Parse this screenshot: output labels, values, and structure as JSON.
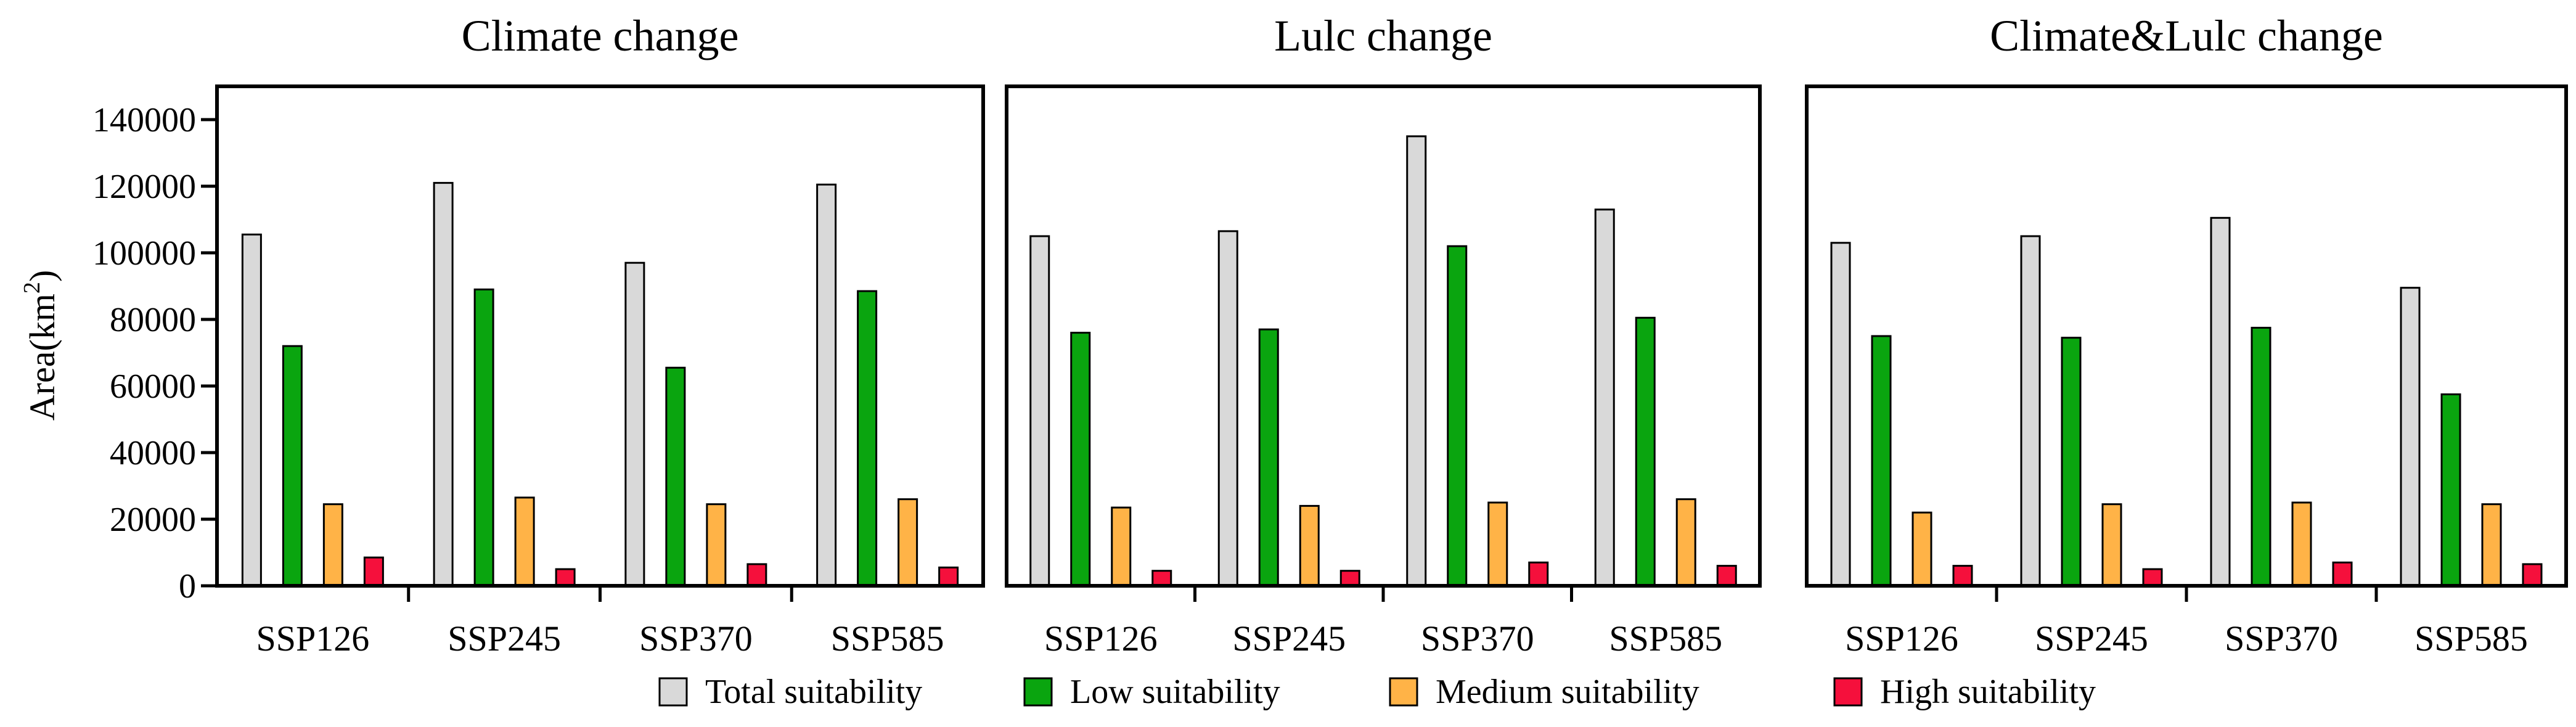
{
  "chart_data": {
    "type": "bar",
    "ylabel": "Area(km",
    "ylabel_sup": "2",
    "ylabel_close": ")",
    "ylim": [
      0,
      150000
    ],
    "yticks": [
      0,
      20000,
      40000,
      60000,
      80000,
      100000,
      120000,
      140000
    ],
    "ytick_labels": [
      "0",
      "20000",
      "40000",
      "60000",
      "80000",
      "100000",
      "120000",
      "140000"
    ],
    "legend": [
      "Total suitability",
      "Low suitability",
      "Medium suitability",
      "High suitability"
    ],
    "colors": [
      "#d9d9d9",
      "#0aa50f",
      "#ffb347",
      "#f5103c"
    ],
    "legend_position": "bottom",
    "panels": [
      {
        "title": "Climate change",
        "categories": [
          "SSP126",
          "SSP245",
          "SSP370",
          "SSP585"
        ],
        "series": [
          {
            "name": "Total suitability",
            "values": [
              105500,
              121000,
              97000,
              120500
            ]
          },
          {
            "name": "Low suitability",
            "values": [
              72000,
              89000,
              65500,
              88500
            ]
          },
          {
            "name": "Medium suitability",
            "values": [
              24500,
              26500,
              24500,
              26000
            ]
          },
          {
            "name": "High suitability",
            "values": [
              8500,
              5000,
              6500,
              5500
            ]
          }
        ]
      },
      {
        "title": "Lulc change",
        "categories": [
          "SSP126",
          "SSP245",
          "SSP370",
          "SSP585"
        ],
        "series": [
          {
            "name": "Total suitability",
            "values": [
              105000,
              106500,
              135000,
              113000
            ]
          },
          {
            "name": "Low suitability",
            "values": [
              76000,
              77000,
              102000,
              80500
            ]
          },
          {
            "name": "Medium suitability",
            "values": [
              23500,
              24000,
              25000,
              26000
            ]
          },
          {
            "name": "High suitability",
            "values": [
              4500,
              4500,
              7000,
              6000
            ]
          }
        ]
      },
      {
        "title": "Climate&Lulc change",
        "categories": [
          "SSP126",
          "SSP245",
          "SSP370",
          "SSP585"
        ],
        "series": [
          {
            "name": "Total suitability",
            "values": [
              103000,
              105000,
              110500,
              89500
            ]
          },
          {
            "name": "Low suitability",
            "values": [
              75000,
              74500,
              77500,
              57500
            ]
          },
          {
            "name": "Medium suitability",
            "values": [
              22000,
              24500,
              25000,
              24500
            ]
          },
          {
            "name": "High suitability",
            "values": [
              6000,
              5000,
              7000,
              6500
            ]
          }
        ]
      }
    ]
  }
}
